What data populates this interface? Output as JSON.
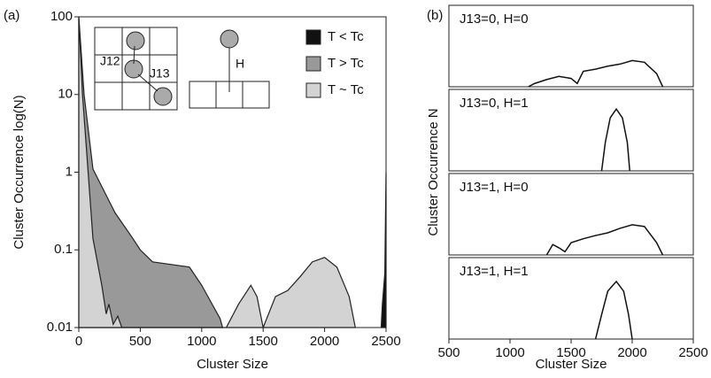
{
  "chart_data": [
    {
      "type": "area",
      "panel_label": "(a)",
      "xlabel": "Cluster Size",
      "ylabel": "Cluster Occurrence log(N)",
      "log_y": true,
      "xlim": [
        0,
        2500
      ],
      "ylim": [
        0.01,
        100
      ],
      "xticks": [
        0,
        500,
        1000,
        1500,
        2000,
        2500
      ],
      "yticks": [
        0.01,
        0.1,
        1,
        10,
        100
      ],
      "legend": "upper right",
      "inset_labels": [
        "J12",
        "J13",
        "H"
      ],
      "series": [
        {
          "name": "T < Tc",
          "color": "#111111",
          "x": [
            2460,
            2470,
            2490,
            2500
          ],
          "values": [
            0.01,
            0.02,
            0.05,
            1
          ]
        },
        {
          "name": "T > Tc",
          "color": "#999999",
          "x": [
            0,
            43,
            115,
            295,
            440,
            500,
            600,
            900,
            1000,
            1150,
            1170
          ],
          "values": [
            100,
            10,
            1.1,
            0.3,
            0.14,
            0.1,
            0.07,
            0.06,
            0.035,
            0.013,
            0.01
          ]
        },
        {
          "name": "T ~ Tc",
          "color": "#d3d3d3",
          "x": [
            0,
            30,
            115,
            187,
            223,
            245,
            280,
            317,
            350,
            1200,
            1300,
            1400,
            1450,
            1500,
            1600,
            1700,
            1800,
            1900,
            2000,
            2100,
            2200,
            2250
          ],
          "values": [
            100,
            10,
            0.14,
            0.035,
            0.015,
            0.02,
            0.011,
            0.014,
            0.01,
            0.01,
            0.02,
            0.035,
            0.025,
            0.01,
            0.025,
            0.03,
            0.045,
            0.07,
            0.08,
            0.06,
            0.025,
            0.01
          ]
        }
      ]
    },
    {
      "type": "line",
      "panel_label": "(b)",
      "xlabel": "Cluster Size",
      "ylabel": "Cluster Occurrence N",
      "log_y": true,
      "xlim": [
        500,
        2500
      ],
      "ylim": [
        0.01,
        1
      ],
      "xticks": [
        500,
        1000,
        1500,
        2000,
        2500
      ],
      "series": [
        {
          "name": "J13=0, H=0",
          "color": "#111111",
          "x": [
            1150,
            1200,
            1300,
            1400,
            1500,
            1550,
            1600,
            1700,
            1800,
            1900,
            2000,
            2100,
            2200,
            2250
          ],
          "values": [
            0.01,
            0.012,
            0.015,
            0.018,
            0.016,
            0.012,
            0.024,
            0.027,
            0.032,
            0.036,
            0.044,
            0.04,
            0.021,
            0.01
          ]
        },
        {
          "name": "J13=0, H=1",
          "color": "#111111",
          "x": [
            1750,
            1780,
            1820,
            1870,
            1920,
            1960,
            1980
          ],
          "values": [
            0.01,
            0.05,
            0.2,
            0.33,
            0.2,
            0.05,
            0.01
          ]
        },
        {
          "name": "J13=1, H=0",
          "color": "#111111",
          "x": [
            1300,
            1350,
            1400,
            1450,
            1500,
            1600,
            1700,
            1800,
            1900,
            2000,
            2100,
            2200,
            2250
          ],
          "values": [
            0.01,
            0.018,
            0.015,
            0.012,
            0.02,
            0.025,
            0.03,
            0.035,
            0.045,
            0.055,
            0.05,
            0.02,
            0.01
          ]
        },
        {
          "name": "J13=1, H=1",
          "color": "#111111",
          "x": [
            1700,
            1750,
            1800,
            1870,
            1930,
            1970,
            2000
          ],
          "values": [
            0.01,
            0.04,
            0.15,
            0.26,
            0.15,
            0.04,
            0.01
          ]
        }
      ]
    }
  ]
}
